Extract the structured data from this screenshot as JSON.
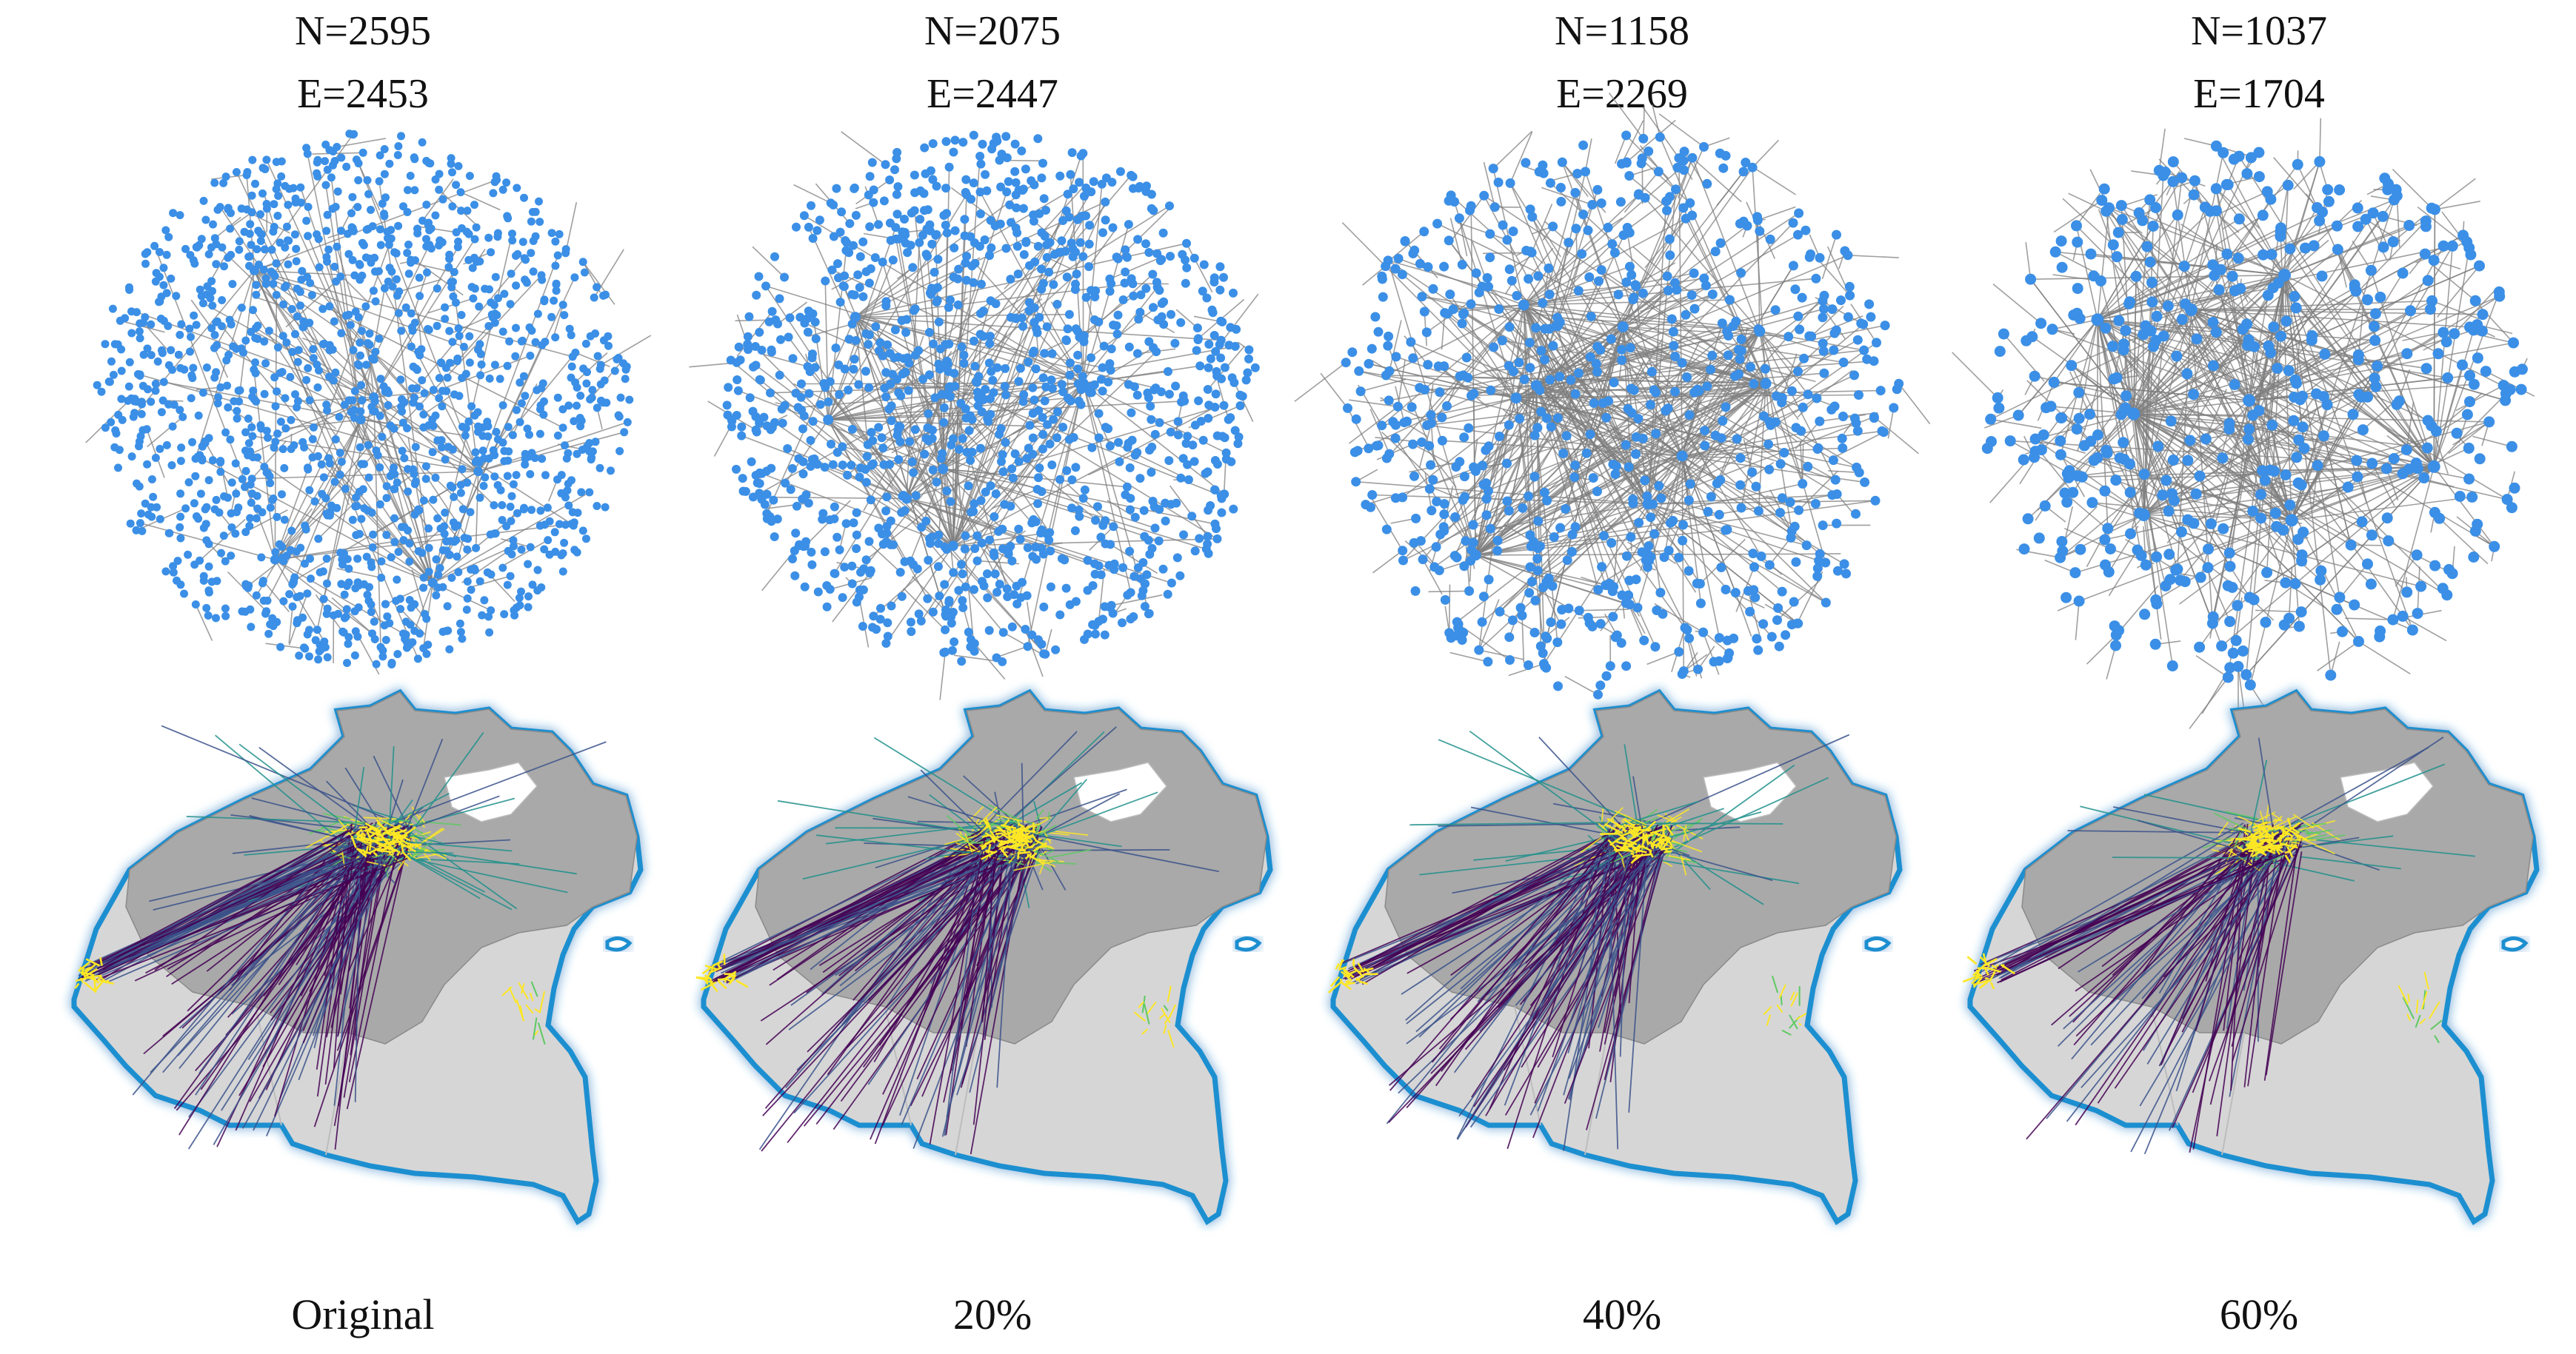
{
  "panels": [
    {
      "nodes_label": "N=2595",
      "edges_label": "E=2453",
      "caption": "Original"
    },
    {
      "nodes_label": "N=2075",
      "edges_label": "E=2447",
      "caption": "20%"
    },
    {
      "nodes_label": "N=1158",
      "edges_label": "E=2269",
      "caption": "40%"
    },
    {
      "nodes_label": "N=1037",
      "edges_label": "E=1704",
      "caption": "60%"
    }
  ],
  "colors": {
    "node": "#3b8fe6",
    "edge": "#7f7f7f",
    "region_dark": "#a9a9a9",
    "region_light": "#d6d6d6",
    "coast_glow": "#1a8fd0",
    "flow_low": "#440154",
    "flow_mid_low": "#3b528b",
    "flow_mid": "#21918c",
    "flow_high": "#5ec962",
    "flow_max": "#fde725"
  }
}
